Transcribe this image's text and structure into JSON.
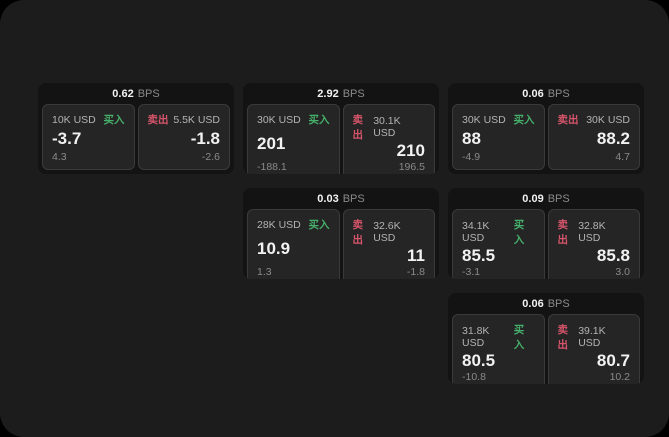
{
  "panel": {
    "outside_background": "#000000",
    "background": "#1c1c1d"
  },
  "colors": {
    "buy": "#46af69",
    "sell": "#d6556a",
    "card_bg": "#131314",
    "tile_bg": "#252526",
    "tile_border": "#3a3a3b",
    "text_primary": "#f2f2f2",
    "text_secondary": "#b3b3b3",
    "text_muted": "#8a8a8a"
  },
  "labels": {
    "buy": "买入",
    "sell": "卖出",
    "bps_unit": "BPS"
  },
  "cards": [
    {
      "bps": "0.62",
      "buy": {
        "size": "10K USD",
        "price": "-3.7",
        "change": "4.3"
      },
      "sell": {
        "size": "5.5K USD",
        "price": "-1.8",
        "change": "-2.6"
      }
    },
    {
      "bps": "2.92",
      "buy": {
        "size": "30K USD",
        "price": "201",
        "change": "-188.1"
      },
      "sell": {
        "size": "30.1K USD",
        "price": "210",
        "change": "196.5"
      }
    },
    {
      "bps": "0.06",
      "buy": {
        "size": "30K USD",
        "price": "88",
        "change": "-4.9"
      },
      "sell": {
        "size": "30K USD",
        "price": "88.2",
        "change": "4.7"
      }
    },
    {
      "bps": "0.03",
      "buy": {
        "size": "28K USD",
        "price": "10.9",
        "change": "1.3"
      },
      "sell": {
        "size": "32.6K USD",
        "price": "11",
        "change": "-1.8"
      }
    },
    {
      "bps": "0.09",
      "buy": {
        "size": "34.1K USD",
        "price": "85.5",
        "change": "-3.1"
      },
      "sell": {
        "size": "32.8K USD",
        "price": "85.8",
        "change": "3.0"
      }
    },
    {
      "bps": "0.06",
      "buy": {
        "size": "31.8K USD",
        "price": "80.5",
        "change": "-10.8"
      },
      "sell": {
        "size": "39.1K USD",
        "price": "80.7",
        "change": "10.2"
      }
    }
  ]
}
